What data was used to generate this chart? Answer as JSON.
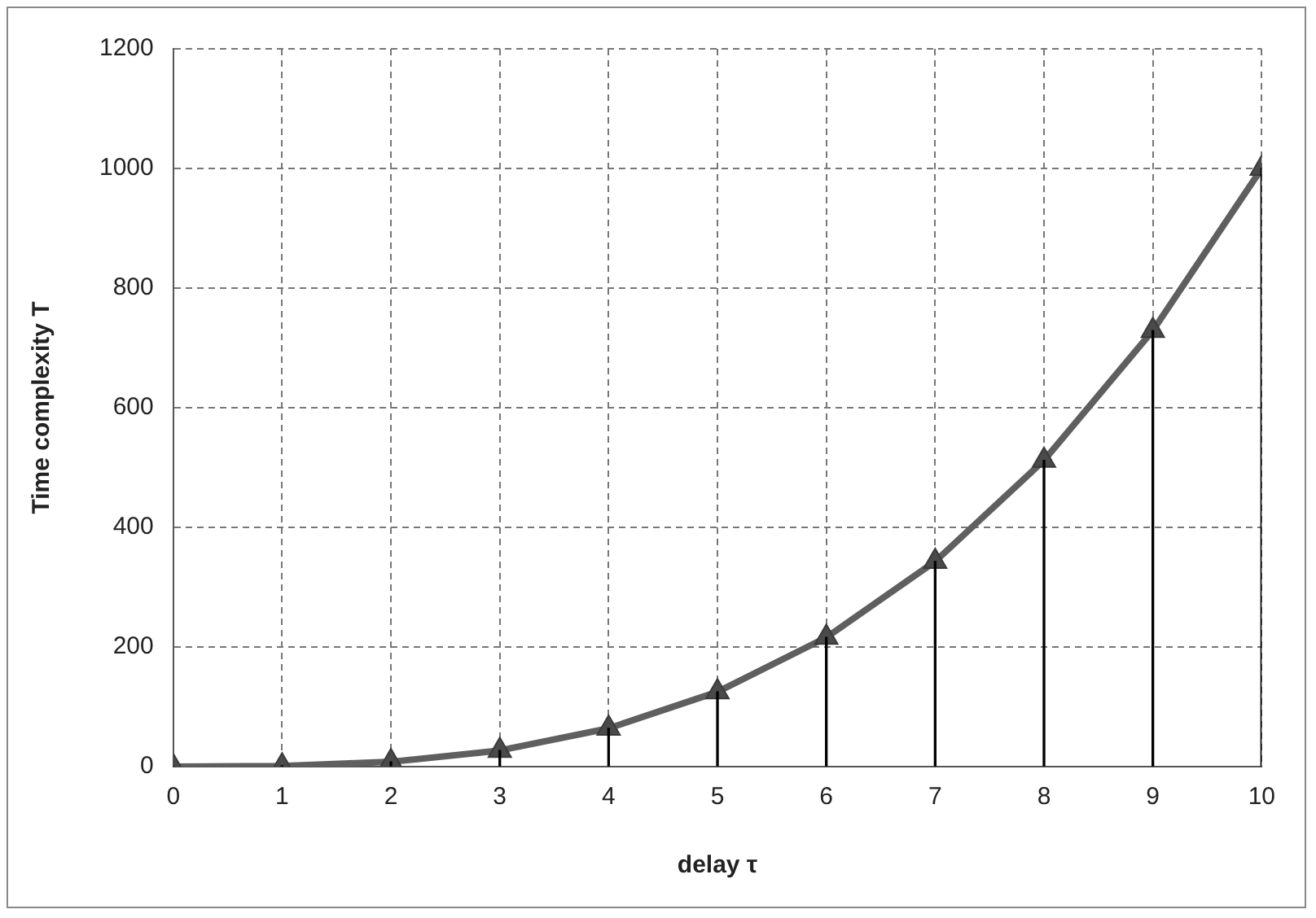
{
  "chart_data": {
    "type": "line",
    "xlabel": "delay τ",
    "ylabel": "Time complexity T",
    "x": [
      0,
      1,
      2,
      3,
      4,
      5,
      6,
      7,
      8,
      9,
      10
    ],
    "series": [
      {
        "type": "bar",
        "color": "#000000",
        "values": [
          0,
          1,
          8,
          27,
          64,
          125,
          216,
          343,
          512,
          729,
          1000
        ]
      },
      {
        "color": "#5f5f5f",
        "values": [
          0,
          1,
          8,
          27,
          64,
          125,
          216,
          343,
          512,
          729,
          1000
        ]
      }
    ],
    "xlim": [
      0,
      10
    ],
    "xticks": [
      0,
      1,
      2,
      3,
      4,
      5,
      6,
      7,
      8,
      9,
      10
    ],
    "ylim": [
      0,
      1200
    ],
    "yticks": [
      0,
      200,
      400,
      600,
      800,
      1000,
      1200
    ],
    "grid": true,
    "legend": false,
    "marker": "triangle",
    "line_style": "solid"
  }
}
